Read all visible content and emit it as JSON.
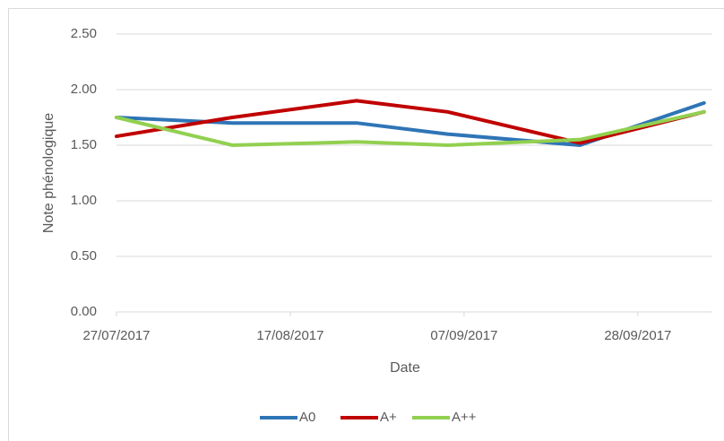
{
  "chart_data": {
    "type": "line",
    "y_label": "Note phénologique",
    "x_label": "Date",
    "x": [
      "2017-07-27",
      "2017-08-10",
      "2017-08-25",
      "2017-09-05",
      "2017-09-21",
      "2017-10-06"
    ],
    "series": [
      {
        "name": "A0",
        "color": "#2e75b6",
        "values": [
          1.75,
          1.7,
          1.7,
          1.6,
          1.5,
          1.88
        ]
      },
      {
        "name": "A+",
        "color": "#c00000",
        "values": [
          1.58,
          1.75,
          1.9,
          1.8,
          1.52,
          1.8
        ]
      },
      {
        "name": "A++",
        "color": "#92d050",
        "values": [
          1.75,
          1.5,
          1.53,
          1.5,
          1.55,
          1.8
        ]
      }
    ],
    "xlim": [
      "2017-07-27",
      "2017-10-07"
    ],
    "xticks": [
      {
        "value": "2017-07-27",
        "label": "27/07/2017"
      },
      {
        "value": "2017-08-17",
        "label": "17/08/2017"
      },
      {
        "value": "2017-09-07",
        "label": "07/09/2017"
      },
      {
        "value": "2017-09-28",
        "label": "28/09/2017"
      }
    ],
    "ylim": [
      0,
      2.5
    ],
    "yticks": [
      {
        "value": 0,
        "label": "0.00"
      },
      {
        "value": 0.5,
        "label": "0.50"
      },
      {
        "value": 1,
        "label": "1.00"
      },
      {
        "value": 1.5,
        "label": "1.50"
      },
      {
        "value": 2,
        "label": "2.00"
      },
      {
        "value": 2.5,
        "label": "2.50"
      }
    ],
    "grid": true,
    "legend": "bottom"
  }
}
